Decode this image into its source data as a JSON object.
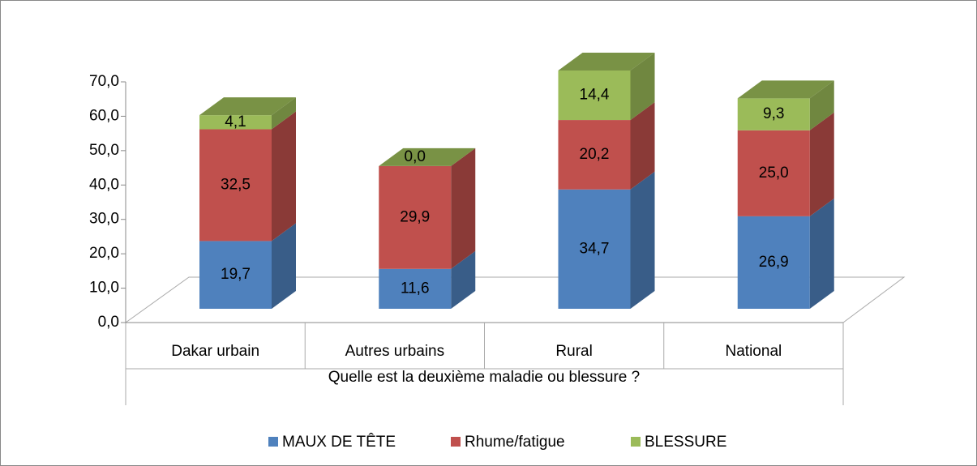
{
  "chart_data": {
    "type": "bar3d_stacked",
    "categories": [
      "Dakar urbain",
      "Autres urbains",
      "Rural",
      "National"
    ],
    "xlabel": "Quelle est la deuxième maladie ou blessure ?",
    "series": [
      {
        "name": "MAUX DE TÊTE",
        "color": "#4f81bd",
        "values": [
          19.7,
          11.6,
          34.7,
          26.9
        ],
        "value_labels": [
          "19,7",
          "11,6",
          "34,7",
          "26,9"
        ]
      },
      {
        "name": "Rhume/fatigue",
        "color": "#c0504d",
        "values": [
          32.5,
          29.9,
          20.2,
          25.0
        ],
        "value_labels": [
          "32,5",
          "29,9",
          "20,2",
          "25,0"
        ]
      },
      {
        "name": "BLESSURE",
        "color": "#9bbb59",
        "values": [
          4.1,
          0.0,
          14.4,
          9.3
        ],
        "value_labels": [
          "4,1",
          "0,0",
          "14,4",
          "9,3"
        ]
      }
    ],
    "ylim": [
      0,
      70
    ],
    "yticks": [
      {
        "value": 0,
        "label": "0,0"
      },
      {
        "value": 10,
        "label": "10,0"
      },
      {
        "value": 20,
        "label": "20,0"
      },
      {
        "value": 30,
        "label": "30,0"
      },
      {
        "value": 40,
        "label": "40,0"
      },
      {
        "value": 50,
        "label": "50,0"
      },
      {
        "value": 60,
        "label": "60,0"
      },
      {
        "value": 70,
        "label": "70,0"
      }
    ],
    "legend": "bottom"
  }
}
